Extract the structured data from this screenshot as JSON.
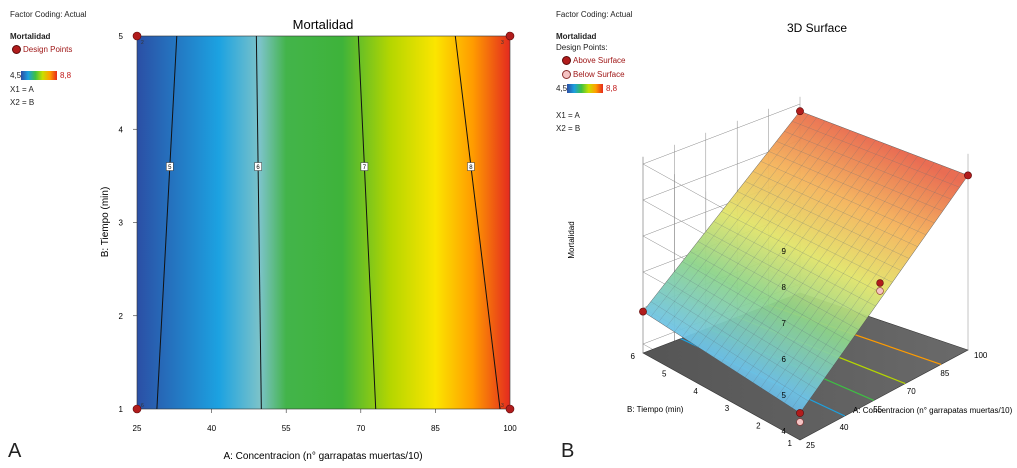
{
  "panelA": {
    "header": "Factor Coding: Actual",
    "legend_title": "Mortalidad",
    "design_points": "Design Points",
    "scale_min": "4,5",
    "scale_max": "8,8",
    "x1": "X1 = A",
    "x2": "X2 = B",
    "letter": "A"
  },
  "panelB": {
    "header": "Factor Coding: Actual",
    "legend_title": "Mortalidad",
    "design_points": "Design Points:",
    "above": "Above Surface",
    "below": "Below Surface",
    "scale_min": "4,5",
    "scale_max": "8,8",
    "x1": "X1 = A",
    "x2": "X2 = B",
    "letter": "B"
  },
  "colors": {
    "low": "#2c4ca3",
    "mid": "#3ec043",
    "high": "#e62a1c",
    "design_point": "#b11c1c"
  },
  "chart_data": [
    {
      "type": "heatmap",
      "title": "Mortalidad",
      "xlabel": "A: Concentracion (n° garrapatas muertas/10)",
      "ylabel": "B: Tiempo (min)",
      "xlim": [
        25,
        100
      ],
      "ylim": [
        1,
        5
      ],
      "x_ticks": [
        25,
        40,
        55,
        70,
        85,
        100
      ],
      "y_ticks": [
        1,
        2,
        3,
        4,
        5
      ],
      "contours": [
        {
          "label": "5",
          "x_at_ymin": 29,
          "x_at_ymax": 33
        },
        {
          "label": "6",
          "x_at_ymin": 50,
          "x_at_ymax": 49
        },
        {
          "label": "7",
          "x_at_ymin": 73,
          "x_at_ymax": 69.5
        },
        {
          "label": "8",
          "x_at_ymin": 98,
          "x_at_ymax": 89
        }
      ],
      "design_points": [
        {
          "x": 25,
          "y": 1,
          "label": "6"
        },
        {
          "x": 25,
          "y": 5,
          "label": "2"
        },
        {
          "x": 100,
          "y": 1,
          "label": "3"
        },
        {
          "x": 100,
          "y": 5,
          "label": "3"
        }
      ]
    },
    {
      "type": "surface",
      "title": "3D Surface",
      "xlabel": "A: Concentracion (n° garrapatas muertas/10)",
      "ylabel": "B: Tiempo (min)",
      "zlabel": "Mortalidad",
      "x_ticks": [
        25,
        40,
        55,
        70,
        85,
        100
      ],
      "y_ticks": [
        1,
        2,
        3,
        4,
        5,
        6
      ],
      "z_ticks": [
        4,
        5,
        6,
        7,
        8,
        9
      ],
      "corners": [
        {
          "x": 25,
          "y": 1,
          "z": 4.5
        },
        {
          "x": 25,
          "y": 6,
          "z": 4.9
        },
        {
          "x": 100,
          "y": 1,
          "z": 8.6
        },
        {
          "x": 100,
          "y": 6,
          "z": 8.8
        }
      ]
    }
  ]
}
